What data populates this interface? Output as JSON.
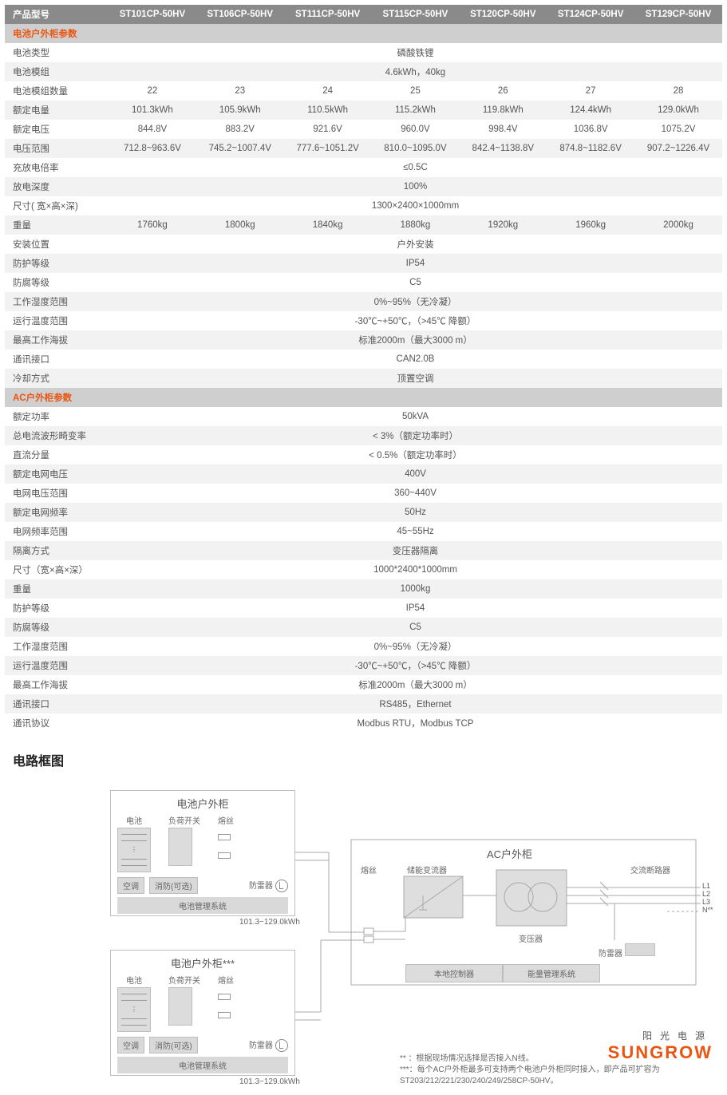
{
  "header": {
    "label": "产品型号",
    "models": [
      "ST101CP-50HV",
      "ST106CP-50HV",
      "ST111CP-50HV",
      "ST115CP-50HV",
      "ST120CP-50HV",
      "ST124CP-50HV",
      "ST129CP-50HV"
    ]
  },
  "section1": {
    "title": "电池户外柜参数"
  },
  "rows1": [
    {
      "label": "电池类型",
      "span": "磷酸铁锂"
    },
    {
      "label": "电池模组",
      "span": "4.6kWh，40kg"
    },
    {
      "label": "电池模组数量",
      "cells": [
        "22",
        "23",
        "24",
        "25",
        "26",
        "27",
        "28"
      ]
    },
    {
      "label": "额定电量",
      "cells": [
        "101.3kWh",
        "105.9kWh",
        "110.5kWh",
        "115.2kWh",
        "119.8kWh",
        "124.4kWh",
        "129.0kWh"
      ]
    },
    {
      "label": "额定电压",
      "cells": [
        "844.8V",
        "883.2V",
        "921.6V",
        "960.0V",
        "998.4V",
        "1036.8V",
        "1075.2V"
      ]
    },
    {
      "label": "电压范围",
      "cells": [
        "712.8~963.6V",
        "745.2~1007.4V",
        "777.6~1051.2V",
        "810.0~1095.0V",
        "842.4~1138.8V",
        "874.8~1182.6V",
        "907.2~1226.4V"
      ]
    },
    {
      "label": "充放电倍率",
      "span": "≤0.5C"
    },
    {
      "label": "放电深度",
      "span": "100%"
    },
    {
      "label": "尺寸( 宽×高×深)",
      "span": "1300×2400×1000mm"
    },
    {
      "label": "重量",
      "cells": [
        "1760kg",
        "1800kg",
        "1840kg",
        "1880kg",
        "1920kg",
        "1960kg",
        "2000kg"
      ]
    },
    {
      "label": "安装位置",
      "span": "户外安装"
    },
    {
      "label": "防护等级",
      "span": "IP54"
    },
    {
      "label": "防腐等级",
      "span": "C5"
    },
    {
      "label": "工作湿度范围",
      "span": "0%~95%（无冷凝）"
    },
    {
      "label": "运行温度范围",
      "span": "-30℃~+50℃，（>45℃ 降额）"
    },
    {
      "label": "最高工作海拔",
      "span": "标准2000m（最大3000 m）"
    },
    {
      "label": "通讯接口",
      "span": "CAN2.0B"
    },
    {
      "label": "冷却方式",
      "span": "顶置空调"
    }
  ],
  "section2": {
    "title": "AC户外柜参数"
  },
  "rows2": [
    {
      "label": "额定功率",
      "span": "50kVA"
    },
    {
      "label": "总电流波形畸变率",
      "span": "< 3%（额定功率时）"
    },
    {
      "label": "直流分量",
      "span": "< 0.5%（额定功率时）"
    },
    {
      "label": "额定电网电压",
      "span": "400V"
    },
    {
      "label": "电网电压范围",
      "span": "360~440V"
    },
    {
      "label": "额定电网频率",
      "span": "50Hz"
    },
    {
      "label": "电网频率范围",
      "span": "45~55Hz"
    },
    {
      "label": "隔离方式",
      "span": "变压器隔离"
    },
    {
      "label": "尺寸（宽×高×深）",
      "span": "1000*2400*1000mm"
    },
    {
      "label": "重量",
      "span": "1000kg"
    },
    {
      "label": "防护等级",
      "span": "IP54"
    },
    {
      "label": "防腐等级",
      "span": "C5"
    },
    {
      "label": "工作湿度范围",
      "span": "0%~95%（无冷凝）"
    },
    {
      "label": "运行温度范围",
      "span": "-30℃~+50℃，（>45℃ 降额）"
    },
    {
      "label": "最高工作海拔",
      "span": "标准2000m（最大3000 m）"
    },
    {
      "label": "通讯接口",
      "span": "RS485，Ethernet"
    },
    {
      "label": "通讯协议",
      "span": "Modbus RTU，Modbus TCP"
    }
  ],
  "diagram": {
    "title": "电路框图",
    "battery_cabinet": "电池户外柜",
    "battery_cabinet_star": "电池户外柜***",
    "ac_cabinet": "AC户外柜",
    "battery": "电池",
    "load_switch": "负荷开关",
    "fuse": "熔丝",
    "air": "空调",
    "fire": "消防(可选)",
    "spd": "防雷器",
    "bms": "电池管理系统",
    "range": "101.3~129.0kWh",
    "pcs": "储能变流器",
    "local": "本地控制器",
    "ems": "能量管理系统",
    "transformer": "变压器",
    "ac_breaker": "交流断路器",
    "l1": "L1",
    "l2": "L2",
    "l3": "L3",
    "n": "N**",
    "footnote1": "** ：根据现场情况选择是否接入N线。",
    "footnote2": "***：每个AC户外柜最多可支持两个电池户外柜同时接入，即产品可扩容为ST203/212/221/230/240/249/258CP-50HV。"
  },
  "logo": {
    "cn": "阳光电源",
    "en": "SUNGROW"
  },
  "colors": {
    "orange": "#e95513",
    "header_bg": "#8a8a8a",
    "sec_bg": "#cfcfcf",
    "row_alt": "#f2f2f2",
    "line": "#bdbdbd"
  }
}
